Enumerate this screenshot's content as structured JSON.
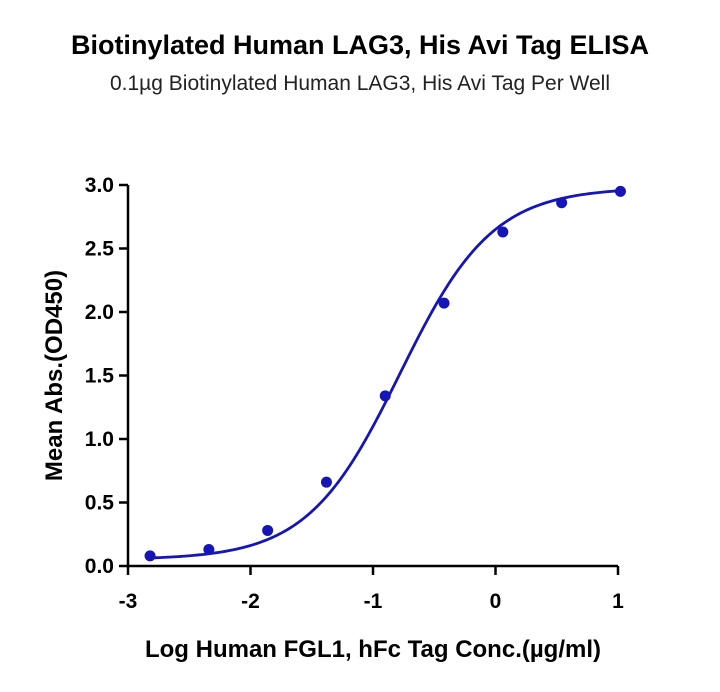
{
  "chart_data": {
    "type": "line",
    "title": "Biotinylated Human LAG3, His Avi Tag ELISA",
    "subtitle": "0.1µg Biotinylated Human LAG3, His Avi Tag Per Well",
    "xlabel": "Log Human FGL1, hFc Tag Conc.(µg/ml)",
    "ylabel": "Mean Abs.(OD450)",
    "xlim": [
      -3,
      1
    ],
    "ylim": [
      0,
      3.0
    ],
    "x_ticks": [
      "-3",
      "-2",
      "-1",
      "0",
      "1"
    ],
    "y_ticks": [
      "0.0",
      "0.5",
      "1.0",
      "1.5",
      "2.0",
      "2.5",
      "3.0"
    ],
    "grid": false,
    "color": "#1515b8",
    "series": [
      {
        "x": [
          -2.82,
          -2.34,
          -1.86,
          -1.38,
          -0.9,
          -0.42,
          0.06,
          0.54,
          1.02
        ],
        "y": [
          0.08,
          0.13,
          0.28,
          0.66,
          1.34,
          2.07,
          2.63,
          2.86,
          2.95
        ]
      }
    ],
    "fit_curve": {
      "bottom": 0.05,
      "top": 2.98,
      "logEC50": -0.78,
      "hill": 1.15
    }
  }
}
